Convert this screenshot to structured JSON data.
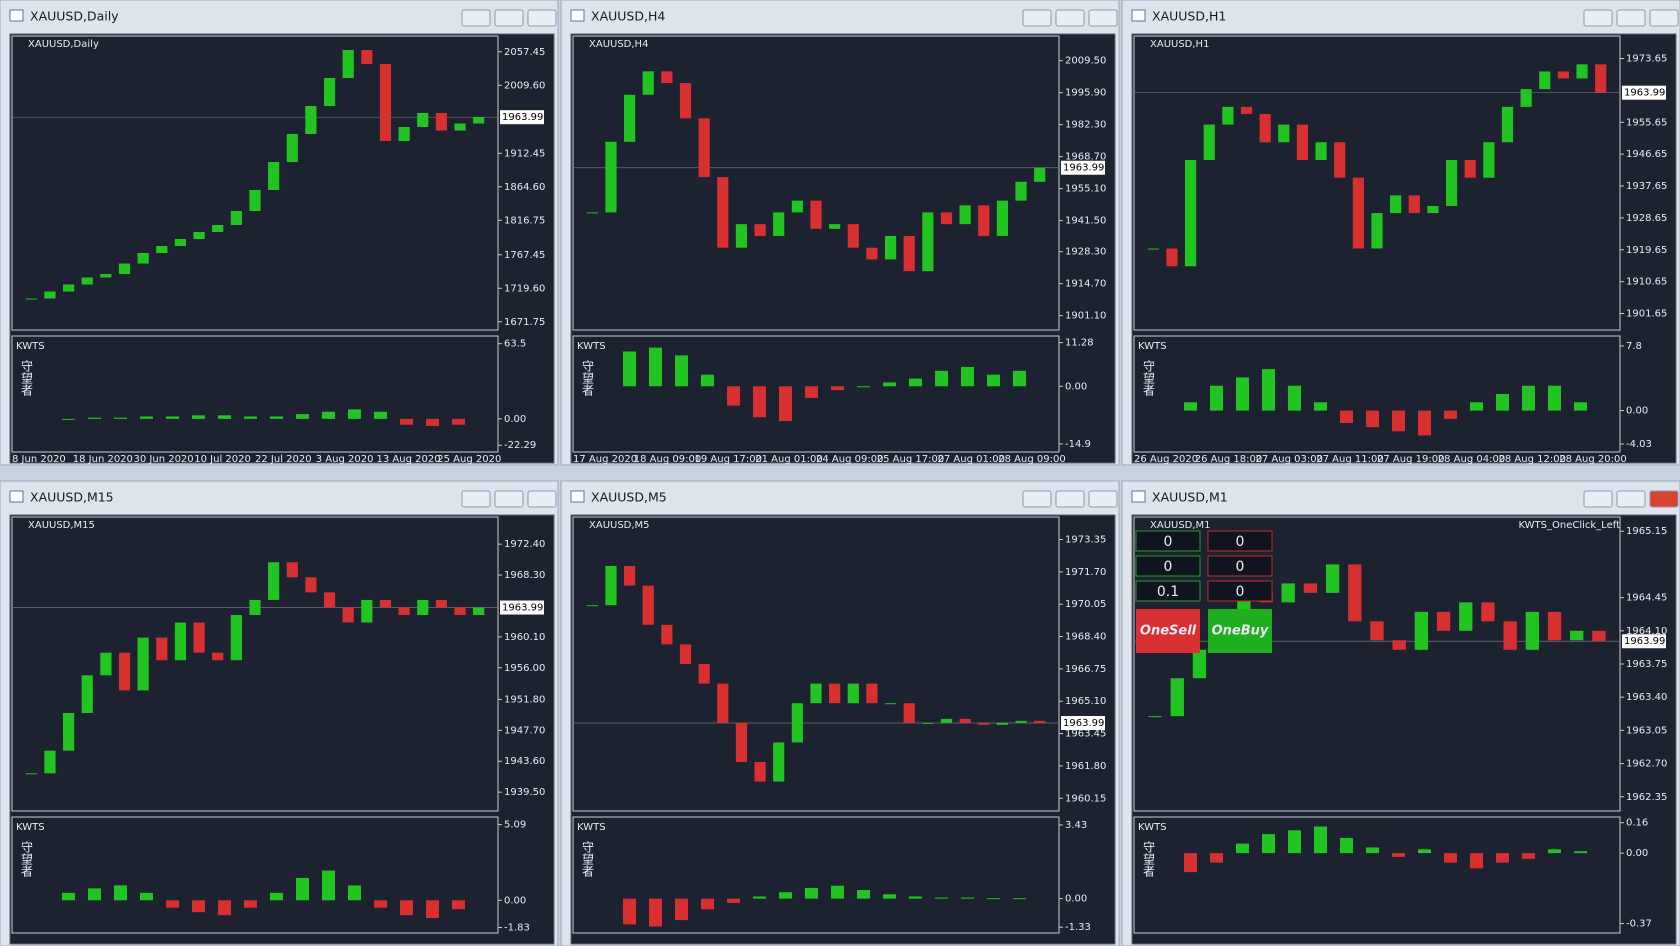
{
  "windows": [
    {
      "title": "XAUUSD,Daily",
      "chart_label": "XAUUSD,Daily",
      "indicator_label": "KWTS",
      "indicator_caption": "守望者",
      "price": 1963.99,
      "ylim": [
        1660,
        2080
      ],
      "yticks": [
        2057.45,
        {
          "value": 2009.6,
          "label": "2009.60"
        },
        1912.45,
        {
          "value": 1864.6,
          "label": "1864.60"
        },
        1816.75,
        1767.45,
        {
          "value": 1719.6,
          "label": "1719.60"
        },
        1671.75
      ],
      "closes": [
        1705,
        1715,
        1725,
        1735,
        1740,
        1755,
        1770,
        1780,
        1790,
        1800,
        1810,
        1830,
        1860,
        1900,
        1940,
        1980,
        2020,
        2060,
        2040,
        1930,
        1950,
        1970,
        1945,
        1955,
        1964
      ],
      "ind_lim": [
        -28,
        70
      ],
      "ind_ticks": [
        63.5,
        {
          "value": 0,
          "label": "0.00"
        },
        -22.29
      ],
      "hist": [
        0,
        1,
        1,
        2,
        2,
        3,
        3,
        2,
        2,
        4,
        6,
        8,
        6,
        -5,
        -6,
        -5
      ],
      "xlabels": [
        "8 Jun 2020",
        "18 Jun 2020",
        "30 Jun 2020",
        "10 Jul 2020",
        "22 Jul 2020",
        "3 Aug 2020",
        "13 Aug 2020",
        "25 Aug 2020"
      ]
    },
    {
      "title": "XAUUSD,H4",
      "chart_label": "XAUUSD,H4",
      "indicator_label": "KWTS",
      "indicator_caption": "守望者",
      "price": 1963.99,
      "ylim": [
        1895,
        2020
      ],
      "yticks": [
        {
          "value": 2009.5,
          "label": "2009.50"
        },
        {
          "value": 1995.9,
          "label": "1995.90"
        },
        {
          "value": 1982.3,
          "label": "1982.30"
        },
        {
          "value": 1968.7,
          "label": "1968.70"
        },
        {
          "value": 1955.1,
          "label": "1955.10"
        },
        {
          "value": 1941.5,
          "label": "1941.50"
        },
        {
          "value": 1928.3,
          "label": "1928.30"
        },
        {
          "value": 1914.7,
          "label": "1914.70"
        },
        {
          "value": 1901.1,
          "label": "1901.10"
        }
      ],
      "closes": [
        1945,
        1975,
        1995,
        2005,
        2000,
        1985,
        1960,
        1930,
        1940,
        1935,
        1945,
        1950,
        1938,
        1940,
        1930,
        1925,
        1935,
        1920,
        1945,
        1940,
        1948,
        1935,
        1950,
        1958,
        1964
      ],
      "ind_lim": [
        -17,
        13
      ],
      "ind_ticks": [
        11.28,
        {
          "value": 0,
          "label": "0.00"
        },
        -14.9
      ],
      "hist": [
        9,
        10,
        8,
        3,
        -5,
        -8,
        -9,
        -3,
        -1,
        0,
        1,
        2,
        4,
        5,
        3,
        4
      ],
      "xlabels": [
        "17 Aug 2020",
        "18 Aug 09:00",
        "19 Aug 17:00",
        "21 Aug 01:00",
        "24 Aug 09:00",
        "25 Aug 17:00",
        "27 Aug 01:00",
        "28 Aug 09:00"
      ]
    },
    {
      "title": "XAUUSD,H1",
      "chart_label": "XAUUSD,H1",
      "indicator_label": "KWTS",
      "indicator_caption": "守望者",
      "price": 1963.99,
      "ylim": [
        1897,
        1980
      ],
      "yticks": [
        1973.65,
        1955.65,
        1946.65,
        1937.65,
        1928.65,
        1919.65,
        1910.65,
        1901.65
      ],
      "closes": [
        1920,
        1915,
        1945,
        1955,
        1960,
        1958,
        1950,
        1955,
        1945,
        1950,
        1940,
        1920,
        1930,
        1935,
        1930,
        1932,
        1945,
        1940,
        1950,
        1960,
        1965,
        1970,
        1968,
        1972,
        1964
      ],
      "ind_lim": [
        -5,
        9
      ],
      "ind_ticks": [
        7.8,
        {
          "value": 0,
          "label": "0.00"
        },
        -4.03
      ],
      "hist": [
        1,
        3,
        4,
        5,
        3,
        1,
        -1.5,
        -2,
        -2.5,
        -3,
        -1,
        1,
        2,
        3,
        3,
        1
      ],
      "xlabels": [
        "26 Aug 2020",
        "26 Aug 18:00",
        "27 Aug 03:00",
        "27 Aug 11:00",
        "27 Aug 19:00",
        "28 Aug 04:00",
        "28 Aug 12:00",
        "28 Aug 20:00"
      ]
    },
    {
      "title": "XAUUSD,M15",
      "chart_label": "XAUUSD,M15",
      "indicator_label": "KWTS",
      "indicator_caption": "守望者",
      "price": 1963.99,
      "ylim": [
        1937,
        1976
      ],
      "yticks": [
        {
          "value": 1972.4,
          "label": "1972.40"
        },
        {
          "value": 1968.3,
          "label": "1968.30"
        },
        {
          "value": 1960.1,
          "label": "1960.10"
        },
        {
          "value": 1956,
          "label": "1956.00"
        },
        {
          "value": 1951.8,
          "label": "1951.80"
        },
        {
          "value": 1947.7,
          "label": "1947.70"
        },
        {
          "value": 1943.6,
          "label": "1943.60"
        },
        {
          "value": 1939.5,
          "label": "1939.50"
        }
      ],
      "closes": [
        1942,
        1945,
        1950,
        1955,
        1958,
        1953,
        1960,
        1957,
        1962,
        1958,
        1957,
        1963,
        1965,
        1970,
        1968,
        1966,
        1964,
        1962,
        1965,
        1964,
        1963,
        1965,
        1964,
        1963,
        1964
      ],
      "ind_lim": [
        -2.2,
        5.6
      ],
      "ind_ticks": [
        5.09,
        {
          "value": 0,
          "label": "0.00"
        },
        -1.83
      ],
      "hist": [
        0.5,
        0.8,
        1,
        0.5,
        -0.5,
        -0.8,
        -1,
        -0.5,
        0.5,
        1.5,
        2,
        1,
        -0.5,
        -1,
        -1.2,
        -0.6
      ]
    },
    {
      "title": "XAUUSD,M5",
      "chart_label": "XAUUSD,M5",
      "indicator_label": "KWTS",
      "indicator_caption": "守望者",
      "price": 1963.99,
      "ylim": [
        1959.5,
        1974.5
      ],
      "yticks": [
        1973.35,
        {
          "value": 1971.7,
          "label": "1971.70"
        },
        1970.05,
        {
          "value": 1968.4,
          "label": "1968.40"
        },
        1966.75,
        {
          "value": 1965.1,
          "label": "1965.10"
        },
        1963.45,
        {
          "value": 1961.8,
          "label": "1961.80"
        },
        1960.15
      ],
      "closes": [
        1970,
        1972,
        1971,
        1969,
        1968,
        1967,
        1966,
        1964,
        1962,
        1961,
        1963,
        1965,
        1966,
        1965,
        1966,
        1965,
        1965,
        1964,
        1964,
        1964.2,
        1964,
        1963.9,
        1964,
        1964.1,
        1963.99
      ],
      "ind_lim": [
        -1.6,
        3.8
      ],
      "ind_ticks": [
        3.43,
        {
          "value": 0,
          "label": "0.00"
        },
        -1.33
      ],
      "hist": [
        -1.2,
        -1.3,
        -1,
        -0.5,
        -0.2,
        0.1,
        0.3,
        0.5,
        0.6,
        0.4,
        0.2,
        0.1,
        0.05,
        0.05,
        0.02,
        0.02
      ]
    },
    {
      "title": "XAUUSD,M1",
      "chart_label": "XAUUSD,M1",
      "indicator_label": "KWTS",
      "indicator_caption": "守望者",
      "price": 1963.99,
      "ylim": [
        1962.2,
        1965.3
      ],
      "yticks": [
        1965.15,
        1964.45,
        {
          "value": 1964.1,
          "label": "1964.10"
        },
        1963.75,
        {
          "value": 1963.4,
          "label": "1963.40"
        },
        1963.05,
        {
          "value": 1962.7,
          "label": "1962.70"
        },
        1962.35
      ],
      "closes": [
        1963.2,
        1963.6,
        1963.9,
        1964.3,
        1964.5,
        1964.4,
        1964.6,
        1964.5,
        1964.8,
        1964.2,
        1964.0,
        1963.9,
        1964.3,
        1964.1,
        1964.4,
        1964.2,
        1963.9,
        1964.3,
        1964.0,
        1964.1,
        1963.99
      ],
      "ind_lim": [
        -0.42,
        0.19
      ],
      "ind_ticks": [
        0.16,
        {
          "value": 0,
          "label": "0.00"
        },
        -0.37
      ],
      "hist": [
        -0.1,
        -0.05,
        0.05,
        0.1,
        0.12,
        0.14,
        0.08,
        0.03,
        -0.02,
        0.02,
        -0.05,
        -0.08,
        -0.05,
        -0.03,
        0.02,
        0.01
      ]
    }
  ],
  "panel": {
    "name": "KWTS_OneClick_Left",
    "fields": [
      [
        0,
        0
      ],
      [
        0,
        0
      ],
      [
        0.1,
        0
      ]
    ],
    "sell": "OneSell",
    "buy": "OneBuy"
  },
  "up_color": "#22c422",
  "down_color": "#d83030"
}
